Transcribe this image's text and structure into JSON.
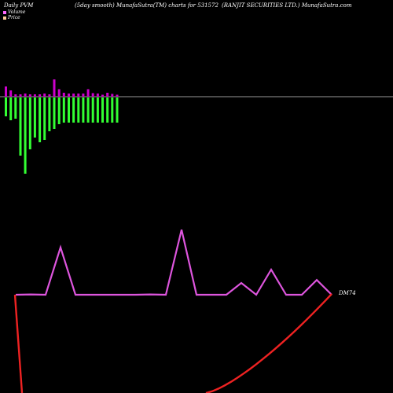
{
  "header": {
    "left": "Daily PVM",
    "middle": "(5day smooth) MunafaSutra(TM) charts for 531572",
    "right": "(RANJIT SECURITIES LTD.) MunafaSutra.com"
  },
  "legend": {
    "items": [
      {
        "label": "Volume",
        "color": "#ff66ff"
      },
      {
        "label": "Price",
        "color": "#ffcc99"
      }
    ]
  },
  "chart_data": [
    {
      "type": "bar",
      "categories": [
        "1",
        "2",
        "3",
        "4",
        "5",
        "6",
        "7",
        "8",
        "9",
        "10",
        "11",
        "12",
        "13",
        "14",
        "15",
        "16",
        "17",
        "18",
        "19",
        "20",
        "21",
        "22",
        "23",
        "24"
      ],
      "series": [
        {
          "name": "Volume",
          "values": [
            2.6,
            1.6,
            0.6,
            0.6,
            0.8,
            0.6,
            0.6,
            0.6,
            0.8,
            0.6,
            4.4,
            1.9,
            1.0,
            0.8,
            0.8,
            0.8,
            0.8,
            1.9,
            0.9,
            0.8,
            0.5,
            1.0,
            0.7,
            0.5
          ]
        },
        {
          "name": "",
          "values": [
            -4.8,
            -5.8,
            -5.4,
            -14.8,
            -19.4,
            -13.2,
            -10.2,
            -11.4,
            -10.8,
            -8.6,
            -8.0,
            -6.8,
            -6.4,
            -6.4,
            -6.4,
            -6.4,
            -6.4,
            -6.4,
            -6.4,
            -6.4,
            -6.4,
            -6.4,
            -6.4,
            -6.4
          ]
        }
      ],
      "colors": {
        "positive": "#cc00cc",
        "negative": "#33ff33",
        "zero_line": "#999999"
      }
    },
    {
      "type": "line",
      "x": [
        1,
        2,
        3,
        4,
        5,
        6,
        7,
        8,
        9,
        10,
        11,
        12,
        13,
        14,
        15,
        16,
        17,
        18,
        19,
        20,
        21,
        22
      ],
      "series": [
        {
          "name": "",
          "values": [
            0,
            0.02,
            0,
            3.2,
            0,
            0,
            0,
            0,
            0,
            0.02,
            0,
            4.4,
            0,
            0,
            0,
            0.8,
            0,
            1.7,
            0,
            0,
            1.0,
            0
          ],
          "color": "#dd55dd"
        },
        {
          "name": "DM74",
          "values": [
            0.0,
            8.0,
            9.0,
            10.0,
            11.0,
            12.0,
            13.0,
            14.0,
            15.0,
            16.0,
            17.0,
            18.0,
            19.0,
            20.0,
            21.0,
            22.0,
            23.0,
            24.0,
            25.0,
            26.0,
            27.0,
            28.0
          ],
          "color": "#ee2222"
        }
      ],
      "end_label": "DM74"
    }
  ]
}
